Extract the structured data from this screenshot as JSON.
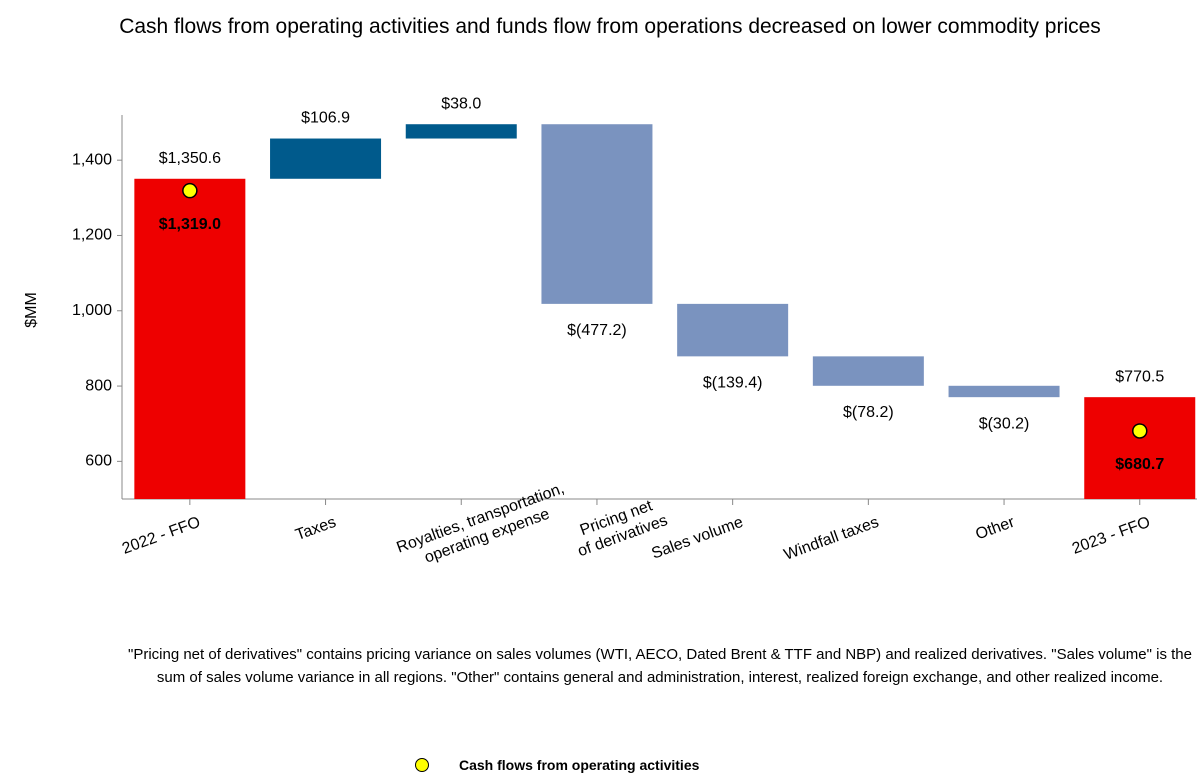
{
  "chart_data": {
    "type": "waterfall",
    "title": "Cash flows from operating activities and funds flow from operations decreased on lower commodity prices",
    "ylabel": "$MM",
    "categories": [
      [
        "2022 - FFO"
      ],
      [
        "Taxes"
      ],
      [
        "Royalties, transportation,",
        "operating expense"
      ],
      [
        "Pricing net",
        "of derivatives"
      ],
      [
        "Sales volume"
      ],
      [
        "Windfall taxes"
      ],
      [
        "Other"
      ],
      [
        "2023 - FFO"
      ]
    ],
    "measure": [
      "total",
      "relative",
      "relative",
      "relative",
      "relative",
      "relative",
      "relative",
      "total"
    ],
    "values": [
      1350.6,
      106.9,
      38.0,
      -477.2,
      -139.4,
      -78.2,
      -30.2,
      770.5
    ],
    "value_labels": [
      "$1,350.6",
      "$106.9",
      "$38.0",
      "$(477.2)",
      "$(139.4)",
      "$(78.2)",
      "$(30.2)",
      "$770.5"
    ],
    "colors": [
      "#ee0000",
      "#005a8c",
      "#005a8c",
      "#7a93bf",
      "#7a93bf",
      "#7a93bf",
      "#7a93bf",
      "#ee0000"
    ],
    "series": [
      {
        "name": "Cash flows from operating activities",
        "color": "#ffff00",
        "values": [
          1319.0,
          null,
          null,
          null,
          null,
          null,
          null,
          680.7
        ],
        "value_labels": [
          "$1,319.0",
          null,
          null,
          null,
          null,
          null,
          null,
          "$680.7"
        ]
      }
    ],
    "ylim": [
      500,
      1520
    ],
    "yticks": [
      600,
      800,
      {
        "value": 1000,
        "label": "1,000"
      },
      {
        "value": 1200,
        "label": "1,200"
      },
      {
        "value": 1400,
        "label": "1,400"
      }
    ],
    "note": "\"Pricing net of derivatives\" contains pricing variance on sales volumes (WTI, AECO, Dated Brent & TTF and NBP) and realized derivatives. \"Sales volume\" is the sum of sales volume variance in all regions. \"Other\" contains general and administration, interest, realized foreign exchange, and other realized income."
  }
}
